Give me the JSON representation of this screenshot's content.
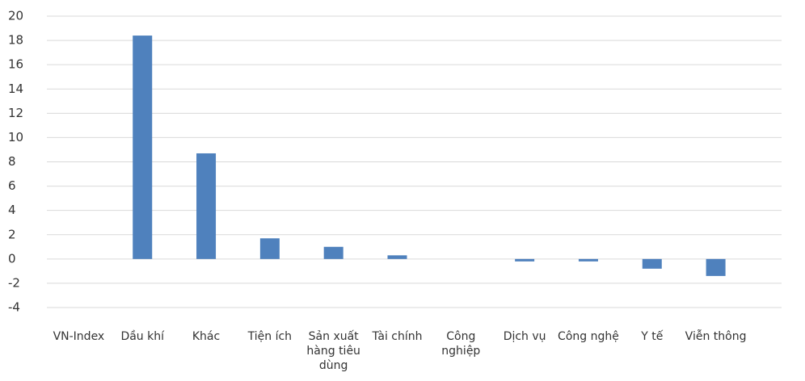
{
  "chart_data": {
    "type": "bar",
    "categories": [
      "VN-Index",
      "Dầu khí",
      "Khác",
      "Tiện ích",
      "Sản xuất hàng tiêu dùng",
      "Tài chính",
      "Công nghiệp",
      "Dịch vụ",
      "Công nghệ",
      "Y tế",
      "Viễn thông"
    ],
    "values": [
      0,
      18.4,
      8.7,
      1.7,
      1.0,
      0.3,
      0,
      -0.2,
      -0.2,
      -0.8,
      -1.4
    ],
    "color": "#4f81bd",
    "ylim": [
      -4,
      20
    ],
    "yticks": [
      -4,
      -2,
      0,
      2,
      4,
      6,
      8,
      10,
      12,
      14,
      16,
      18,
      20
    ],
    "grid": true
  }
}
